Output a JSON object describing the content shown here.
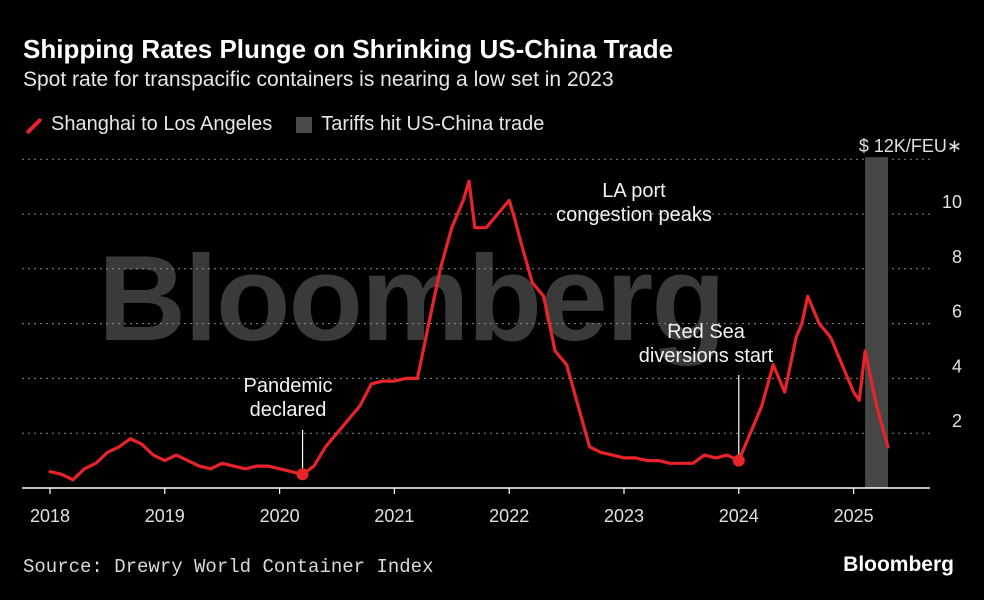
{
  "title": "Shipping Rates Plunge on Shrinking US-China Trade",
  "subtitle": "Spot rate for transpacific containers is nearing a low set in 2023",
  "legend": {
    "series_label": "Shanghai to Los Angeles",
    "band_label": "Tariffs hit US-China trade"
  },
  "source": "Source: Drewry World Container Index",
  "brand": "Bloomberg",
  "watermark": "Bloomberg",
  "colors": {
    "line": "#e8232a",
    "band": "#4a4a4a",
    "grid": "#8a8a8a",
    "background": "#000000"
  },
  "chart_data": {
    "type": "line",
    "title": "Shipping Rates Plunge on Shrinking US-China Trade",
    "unit_label": "$ 12K/FEU∗",
    "x_ticks": [
      "2018",
      "2019",
      "2020",
      "2021",
      "2022",
      "2023",
      "2024",
      "2025"
    ],
    "y_ticks": [
      "2",
      "4",
      "6",
      "8",
      "10"
    ],
    "xlim": [
      2018,
      2025.5
    ],
    "ylim": [
      0,
      12
    ],
    "grid": true,
    "legend_position": "top-left",
    "shaded_band": {
      "label": "Tariffs hit US-China trade",
      "x": [
        2025.1,
        2025.3
      ]
    },
    "series": [
      {
        "name": "Shanghai to Los Angeles",
        "x": [
          2018.0,
          2018.1,
          2018.2,
          2018.3,
          2018.4,
          2018.5,
          2018.6,
          2018.7,
          2018.8,
          2018.9,
          2019.0,
          2019.1,
          2019.2,
          2019.3,
          2019.4,
          2019.5,
          2019.6,
          2019.7,
          2019.8,
          2019.9,
          2020.0,
          2020.1,
          2020.2,
          2020.3,
          2020.4,
          2020.5,
          2020.6,
          2020.7,
          2020.8,
          2020.9,
          2021.0,
          2021.1,
          2021.2,
          2021.3,
          2021.4,
          2021.5,
          2021.6,
          2021.65,
          2021.7,
          2021.8,
          2021.9,
          2022.0,
          2022.05,
          2022.1,
          2022.2,
          2022.3,
          2022.4,
          2022.5,
          2022.6,
          2022.7,
          2022.8,
          2022.9,
          2023.0,
          2023.1,
          2023.2,
          2023.3,
          2023.4,
          2023.5,
          2023.6,
          2023.7,
          2023.8,
          2023.9,
          2024.0,
          2024.1,
          2024.2,
          2024.3,
          2024.4,
          2024.5,
          2024.55,
          2024.6,
          2024.7,
          2024.8,
          2024.9,
          2025.0,
          2025.05,
          2025.1,
          2025.2,
          2025.3
        ],
        "values": [
          0.6,
          0.5,
          0.3,
          0.7,
          0.9,
          1.3,
          1.5,
          1.8,
          1.6,
          1.2,
          1.0,
          1.2,
          1.0,
          0.8,
          0.7,
          0.9,
          0.8,
          0.7,
          0.8,
          0.8,
          0.7,
          0.6,
          0.5,
          0.8,
          1.5,
          2.0,
          2.5,
          3.0,
          3.8,
          3.9,
          3.9,
          4.0,
          4.0,
          6.0,
          8.0,
          9.5,
          10.5,
          11.2,
          9.5,
          9.5,
          10.0,
          10.5,
          9.8,
          9.0,
          7.5,
          7.0,
          5.0,
          4.5,
          3.0,
          1.5,
          1.3,
          1.2,
          1.1,
          1.1,
          1.0,
          1.0,
          0.9,
          0.9,
          0.9,
          1.2,
          1.1,
          1.2,
          1.0,
          2.0,
          3.0,
          4.5,
          3.5,
          5.5,
          6.0,
          7.0,
          6.0,
          5.5,
          4.5,
          3.5,
          3.2,
          5.0,
          3.0,
          1.5
        ]
      }
    ],
    "annotations": [
      {
        "text_lines": [
          "Pandemic",
          "declared"
        ],
        "x": 2020.2,
        "y": 0.5,
        "marker": true
      },
      {
        "text_lines": [
          "LA port",
          "congestion peaks"
        ],
        "x": 2022.1,
        "y": 10.5,
        "marker": false
      },
      {
        "text_lines": [
          "Red Sea",
          "diversions start"
        ],
        "x": 2024.0,
        "y": 1.0,
        "marker": true
      }
    ]
  }
}
